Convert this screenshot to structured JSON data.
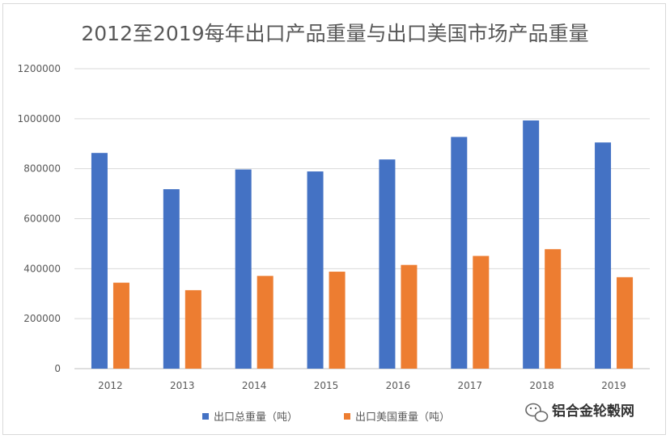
{
  "chart_data": {
    "type": "bar",
    "title": "2012至2019每年出口产品重量与出口美国市场产品重量",
    "categories": [
      "2012",
      "2013",
      "2014",
      "2015",
      "2016",
      "2017",
      "2018",
      "2019"
    ],
    "series": [
      {
        "name": "出口总重量（吨）",
        "values": [
          863000,
          718000,
          797000,
          789000,
          837000,
          927000,
          993000,
          905000
        ],
        "color": "#4472c4"
      },
      {
        "name": "出口美国重量（吨）",
        "values": [
          344000,
          314000,
          371000,
          388000,
          415000,
          451000,
          478000,
          366000
        ],
        "color": "#ed7d31"
      }
    ],
    "yticks": [
      "0",
      "200000",
      "400000",
      "600000",
      "800000",
      "1000000",
      "1200000"
    ],
    "ylim": [
      0,
      1200000
    ],
    "grid": true,
    "legend_position": "bottom"
  },
  "watermark": {
    "text": "铝合金轮毂网",
    "icon": "wechat-icon"
  }
}
